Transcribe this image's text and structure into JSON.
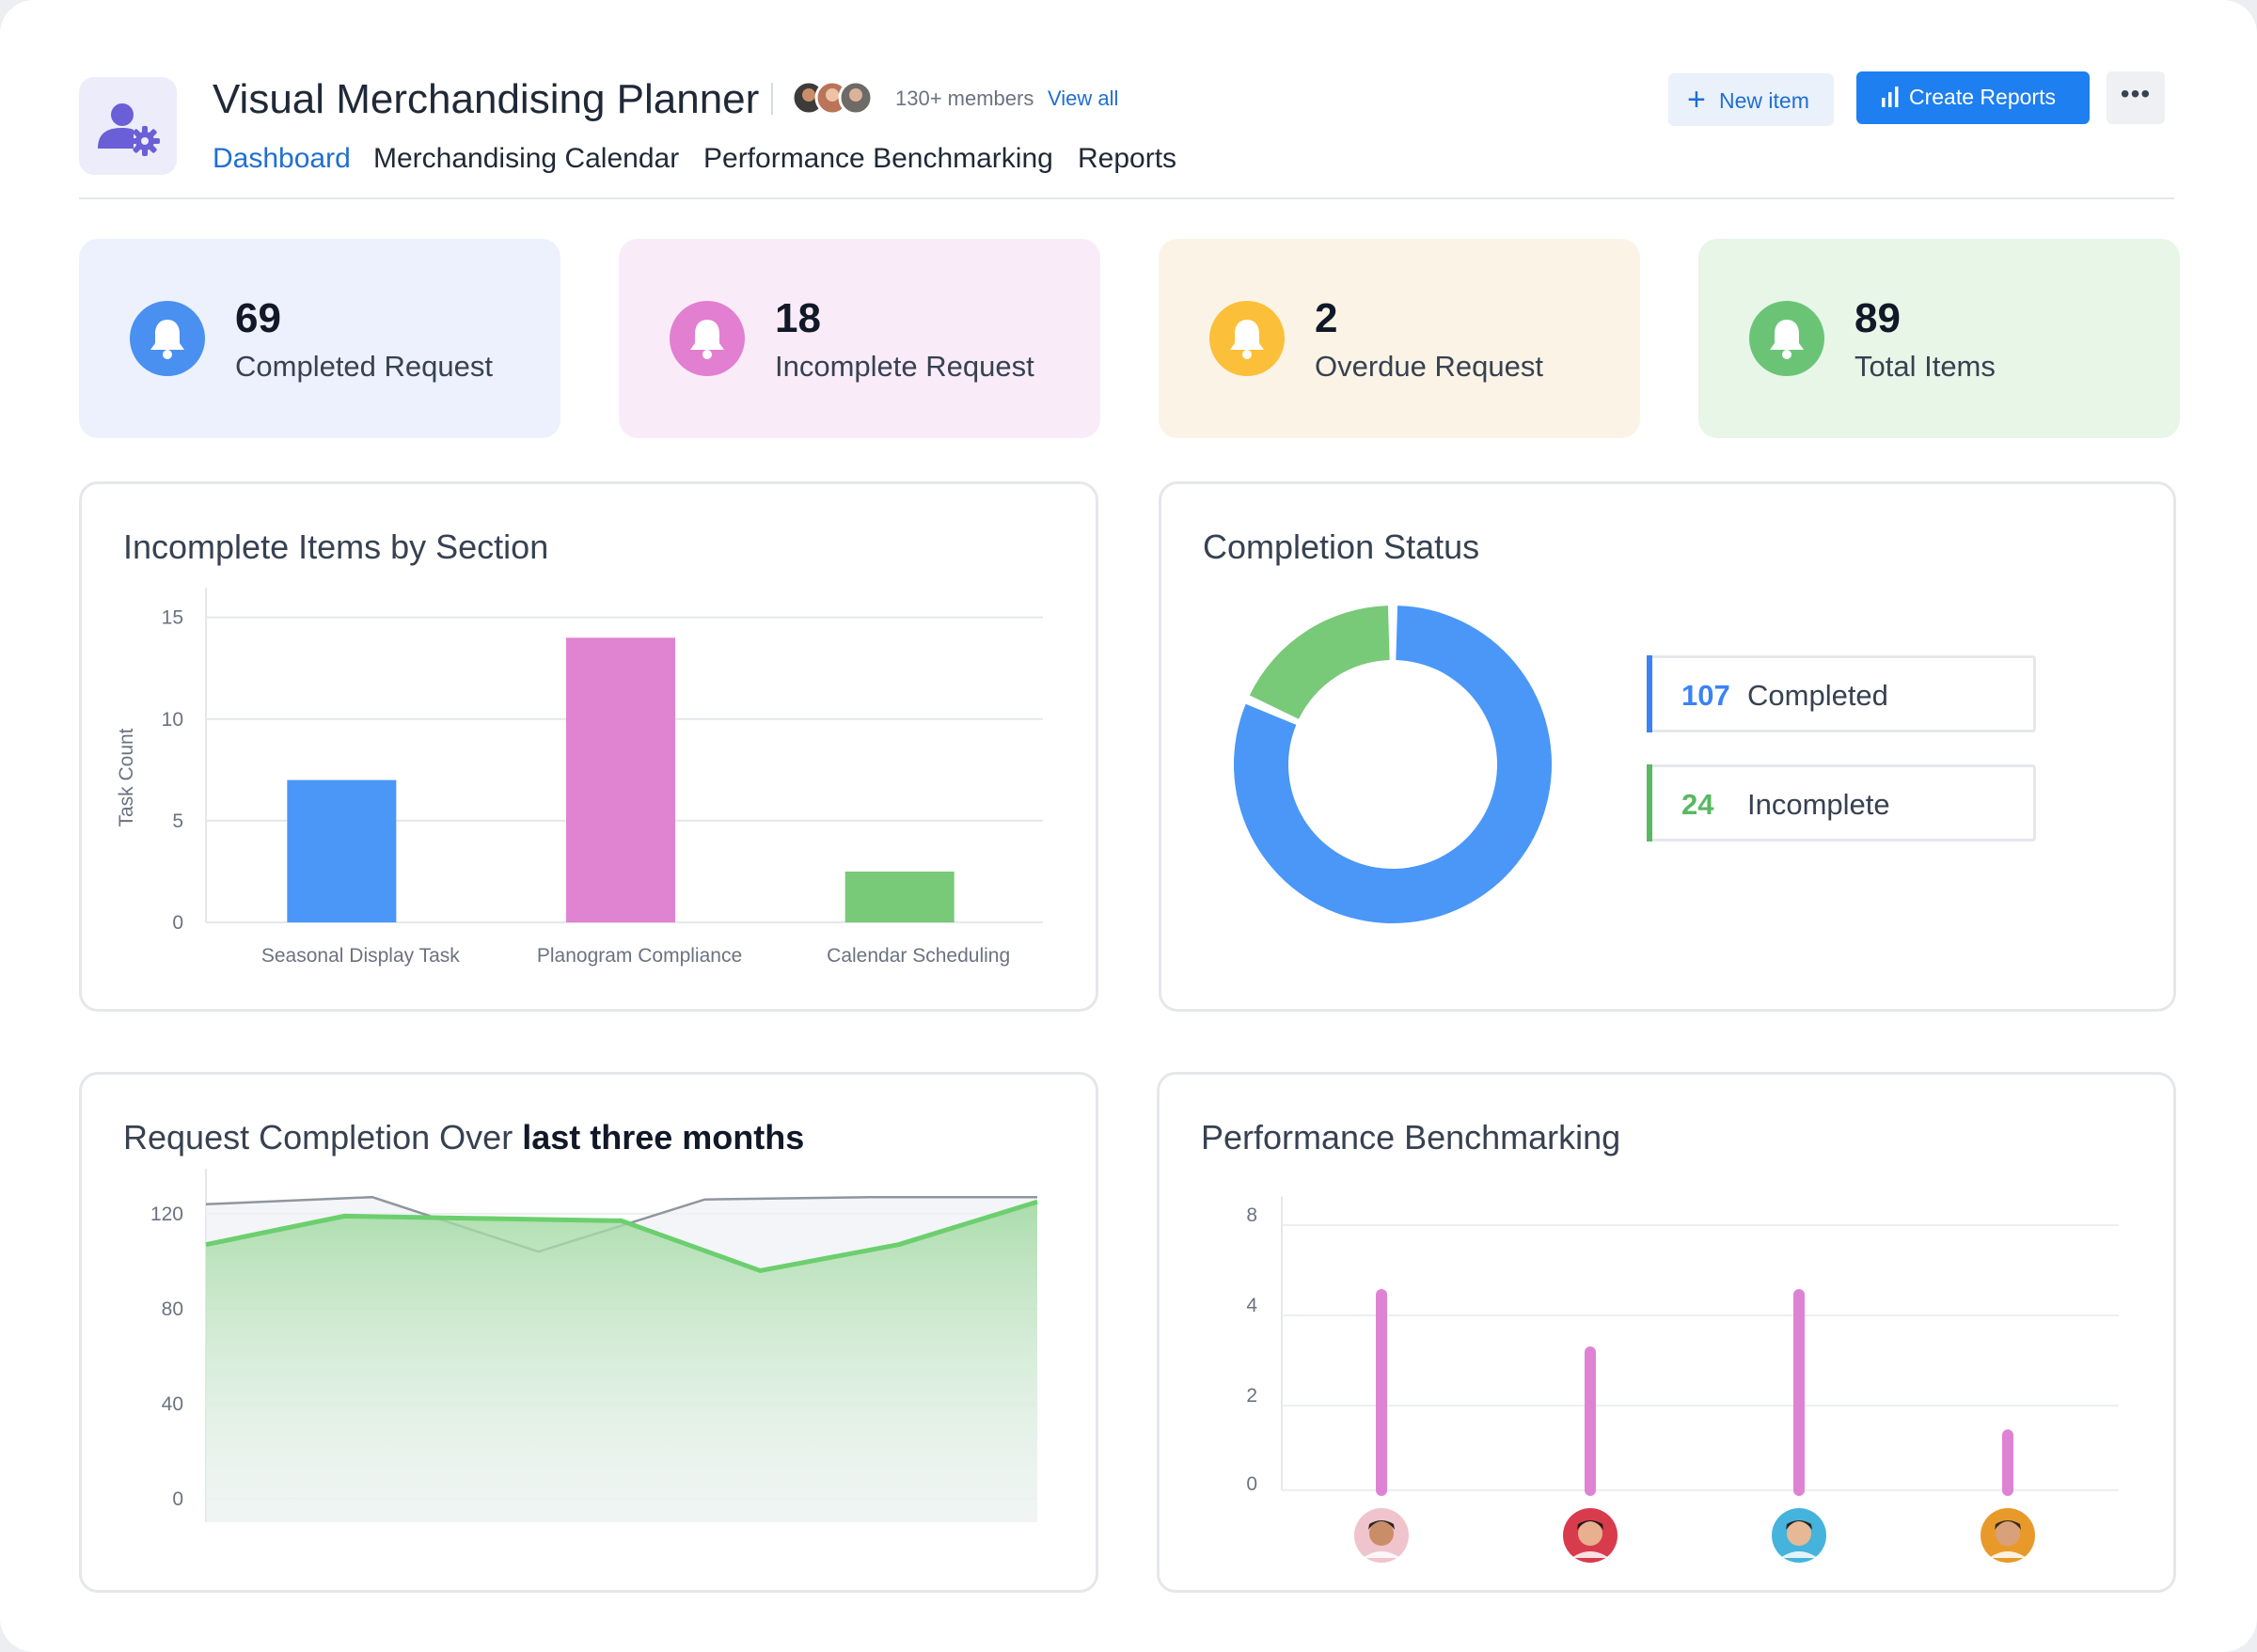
{
  "app": {
    "title": "Visual Merchandising Planner",
    "members_text": "130+ members",
    "view_all": "View all"
  },
  "nav": {
    "tabs": [
      "Dashboard",
      "Merchandising Calendar",
      "Performance Benchmarking",
      "Reports"
    ],
    "active": "Dashboard"
  },
  "toolbar": {
    "new_item": "New item",
    "create_reports": "Create Reports"
  },
  "stats": [
    {
      "value": "69",
      "label": "Completed Request",
      "color": "#4a90f0",
      "bg": "#ecf1fd"
    },
    {
      "value": "18",
      "label": "Incomplete Request",
      "color": "#e27fd1",
      "bg": "#f9ecf8"
    },
    {
      "value": "2",
      "label": "Overdue Request",
      "color": "#fbbf39",
      "bg": "#fbf4e6"
    },
    {
      "value": "89",
      "label": "Total Items",
      "color": "#6bc476",
      "bg": "#e7f6e7"
    }
  ],
  "panels": {
    "incomplete_by_section": {
      "title": "Incomplete Items by Section"
    },
    "completion_status": {
      "title": "Completion Status",
      "legend": [
        {
          "value": "107",
          "label": "Completed",
          "color": "#3b82f6"
        },
        {
          "value": "24",
          "label": "Incomplete",
          "color": "#5ab863"
        }
      ]
    },
    "request_completion": {
      "title_prefix": "Request Completion Over",
      "title_period": "last three months"
    },
    "performance": {
      "title": "Performance Benchmarking"
    }
  },
  "chart_data": [
    {
      "type": "bar",
      "title": "Incomplete Items by Section",
      "ylabel": "Task Count",
      "categories": [
        "Seasonal Display Task",
        "Planogram Compliance",
        "Calendar Scheduling"
      ],
      "values": [
        7,
        14,
        2.5
      ],
      "colors": [
        "#4a97f8",
        "#e083d1",
        "#78c978"
      ],
      "ylim": [
        0,
        16
      ],
      "yticks": [
        0,
        5,
        10,
        15
      ],
      "grid": true
    },
    {
      "type": "pie",
      "title": "Completion Status",
      "labels": [
        "Completed",
        "Incomplete"
      ],
      "values": [
        107,
        24
      ],
      "colors": [
        "#4a97f8",
        "#78c978"
      ]
    },
    {
      "type": "area",
      "title": "Request Completion Over last three months",
      "ylim": [
        -10,
        135
      ],
      "yticks": [
        0,
        40,
        80,
        120
      ],
      "series": [
        {
          "values": [
            124,
            127,
            104,
            126,
            127,
            127
          ],
          "color": "#8f969e"
        },
        {
          "values": [
            107,
            119,
            118,
            117,
            96,
            107,
            125
          ],
          "color": "#6ccf6e"
        }
      ]
    },
    {
      "type": "bar",
      "title": "Performance Benchmarking",
      "ylim": [
        0,
        8
      ],
      "yticks": [
        0,
        2,
        4,
        8
      ],
      "values": [
        4.5,
        3,
        4.5,
        1.2
      ],
      "color": "#de83d4",
      "grid": true
    }
  ]
}
